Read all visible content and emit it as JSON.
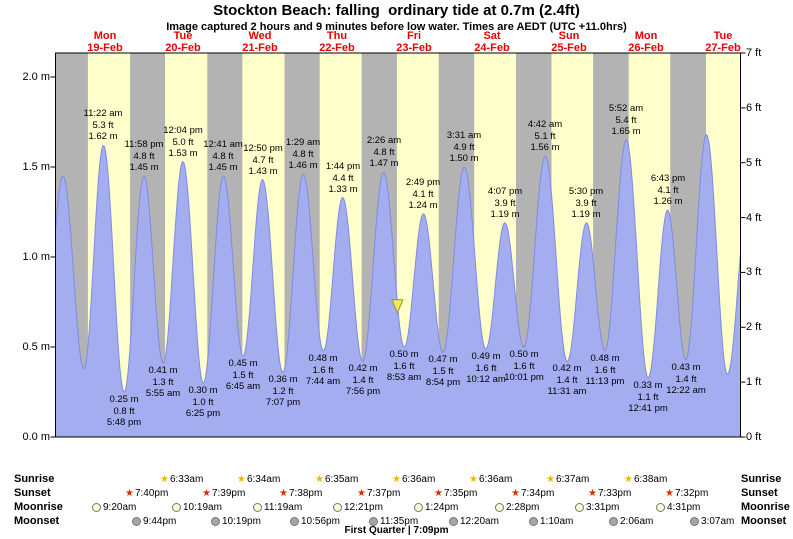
{
  "title": "Stockton Beach: falling  ordinary tide at 0.7m (2.4ft)",
  "subtitle": "Image captured 2 hours and 9 minutes before low water. Times are AEDT (UTC +11.0hrs)",
  "colors": {
    "day_bg": "#ffffcc",
    "night_bg": "#b3b3b3",
    "tide_fill": "#a3adf0",
    "tide_stroke": "#7f8ce0",
    "day_label": "#e80000",
    "frame": "#000000",
    "marker_fill": "#efe95e",
    "marker_stroke": "#97941f"
  },
  "days": [
    {
      "name": "Mon",
      "date": "19-Feb",
      "t_noon": 12
    },
    {
      "name": "Tue",
      "date": "20-Feb",
      "t_noon": 36
    },
    {
      "name": "Wed",
      "date": "21-Feb",
      "t_noon": 60
    },
    {
      "name": "Thu",
      "date": "22-Feb",
      "t_noon": 84
    },
    {
      "name": "Fri",
      "date": "23-Feb",
      "t_noon": 108
    },
    {
      "name": "Sat",
      "date": "24-Feb",
      "t_noon": 132
    },
    {
      "name": "Sun",
      "date": "25-Feb",
      "t_noon": 156
    },
    {
      "name": "Mon",
      "date": "26-Feb",
      "t_noon": 180
    },
    {
      "name": "Tue",
      "date": "27-Feb",
      "t_noon": 204
    }
  ],
  "y_axis_left": {
    "unit": "m",
    "labels": [
      "2.0 m",
      "1.5 m",
      "1.0 m",
      "0.5 m",
      "0.0 m"
    ],
    "values": [
      2.0,
      1.5,
      1.0,
      0.5,
      0.0
    ]
  },
  "y_axis_right": {
    "unit": "ft",
    "labels": [
      "7 ft",
      "6 ft",
      "5 ft",
      "4 ft",
      "3 ft",
      "2 ft",
      "1 ft",
      "0 ft"
    ],
    "values": [
      7,
      6,
      5,
      4,
      3,
      2,
      1,
      0
    ]
  },
  "chart_data": {
    "type": "area",
    "title": "Tide height curve, Stockton Beach, Mon 19-Feb to Tue 27-Feb",
    "time_axis": "hours from Mon 19-Feb 00:00 AEDT",
    "t_range": [
      -3.53,
      209.37
    ],
    "ylim_m": [
      0,
      2.1336
    ],
    "ylim_ft": [
      0,
      7
    ],
    "grid": false,
    "extremes": [
      {
        "t": -7.6,
        "height_m": 0.4,
        "type": "low",
        "labeled": false
      },
      {
        "t": -1.2,
        "height_m": 1.45,
        "type": "high",
        "labeled": false
      },
      {
        "t": 5.3,
        "height_m": 0.38,
        "type": "low",
        "labeled": false
      },
      {
        "t": 11.37,
        "height_m": 1.62,
        "type": "high",
        "labeled": true,
        "time": "11:22 am",
        "ft": "5.3 ft",
        "m": "1.62 m"
      },
      {
        "t": 17.8,
        "height_m": 0.25,
        "type": "low",
        "labeled": true,
        "time": "5:48 pm",
        "ft": "0.8 ft",
        "m": "0.25 m"
      },
      {
        "t": 23.97,
        "height_m": 1.45,
        "type": "high",
        "labeled": true,
        "time": "11:58 pm",
        "ft": "4.8 ft",
        "m": "1.45 m"
      },
      {
        "t": 29.92,
        "height_m": 0.41,
        "type": "low",
        "labeled": true,
        "time": "5:55 am",
        "ft": "1.3 ft",
        "m": "0.41 m"
      },
      {
        "t": 36.07,
        "height_m": 1.53,
        "type": "high",
        "labeled": true,
        "time": "12:04 pm",
        "ft": "5.0 ft",
        "m": "1.53 m"
      },
      {
        "t": 42.42,
        "height_m": 0.3,
        "type": "low",
        "labeled": true,
        "time": "6:25 pm",
        "ft": "1.0 ft",
        "m": "0.30 m"
      },
      {
        "t": 48.68,
        "height_m": 1.45,
        "type": "high",
        "labeled": true,
        "time": "12:41 am",
        "ft": "4.8 ft",
        "m": "1.45 m"
      },
      {
        "t": 54.75,
        "height_m": 0.45,
        "type": "low",
        "labeled": true,
        "time": "6:45 am",
        "ft": "1.5 ft",
        "m": "0.45 m"
      },
      {
        "t": 60.83,
        "height_m": 1.43,
        "type": "high",
        "labeled": true,
        "time": "12:50 pm",
        "ft": "4.7 ft",
        "m": "1.43 m"
      },
      {
        "t": 67.12,
        "height_m": 0.36,
        "type": "low",
        "labeled": true,
        "time": "7:07 pm",
        "ft": "1.2 ft",
        "m": "0.36 m"
      },
      {
        "t": 73.48,
        "height_m": 1.46,
        "type": "high",
        "labeled": true,
        "time": "1:29 am",
        "ft": "4.8 ft",
        "m": "1.46 m"
      },
      {
        "t": 79.73,
        "height_m": 0.48,
        "type": "low",
        "labeled": true,
        "time": "7:44 am",
        "ft": "1.6 ft",
        "m": "0.48 m"
      },
      {
        "t": 85.73,
        "height_m": 1.33,
        "type": "high",
        "labeled": true,
        "time": "1:44 pm",
        "ft": "4.4 ft",
        "m": "1.33 m"
      },
      {
        "t": 91.93,
        "height_m": 0.42,
        "type": "low",
        "labeled": true,
        "time": "7:56 pm",
        "ft": "1.4 ft",
        "m": "0.42 m"
      },
      {
        "t": 98.43,
        "height_m": 1.47,
        "type": "high",
        "labeled": true,
        "time": "2:26 am",
        "ft": "4.8 ft",
        "m": "1.47 m"
      },
      {
        "t": 104.88,
        "height_m": 0.5,
        "type": "low",
        "labeled": true,
        "time": "8:53 am",
        "ft": "1.6 ft",
        "m": "0.50 m"
      },
      {
        "t": 110.82,
        "height_m": 1.24,
        "type": "high",
        "labeled": true,
        "time": "2:49 pm",
        "ft": "4.1 ft",
        "m": "1.24 m"
      },
      {
        "t": 116.9,
        "height_m": 0.47,
        "type": "low",
        "labeled": true,
        "time": "8:54 pm",
        "ft": "1.5 ft",
        "m": "0.47 m"
      },
      {
        "t": 123.52,
        "height_m": 1.5,
        "type": "high",
        "labeled": true,
        "time": "3:31 am",
        "ft": "4.9 ft",
        "m": "1.50 m"
      },
      {
        "t": 130.2,
        "height_m": 0.49,
        "type": "low",
        "labeled": true,
        "time": "10:12 am",
        "ft": "1.6 ft",
        "m": "0.49 m"
      },
      {
        "t": 136.12,
        "height_m": 1.19,
        "type": "high",
        "labeled": true,
        "time": "4:07 pm",
        "ft": "3.9 ft",
        "m": "1.19 m"
      },
      {
        "t": 142.02,
        "height_m": 0.5,
        "type": "low",
        "labeled": true,
        "time": "10:01 pm",
        "ft": "1.6 ft",
        "m": "0.50 m"
      },
      {
        "t": 148.7,
        "height_m": 1.56,
        "type": "high",
        "labeled": true,
        "time": "4:42 am",
        "ft": "5.1 ft",
        "m": "1.56 m"
      },
      {
        "t": 155.52,
        "height_m": 0.42,
        "type": "low",
        "labeled": true,
        "time": "11:31 am",
        "ft": "1.4 ft",
        "m": "0.42 m"
      },
      {
        "t": 161.5,
        "height_m": 1.19,
        "type": "high",
        "labeled": true,
        "time": "5:30 pm",
        "ft": "3.9 ft",
        "m": "1.19 m"
      },
      {
        "t": 167.22,
        "height_m": 0.48,
        "type": "low",
        "labeled": true,
        "time": "11:13 pm",
        "ft": "1.6 ft",
        "m": "0.48 m"
      },
      {
        "t": 173.87,
        "height_m": 1.65,
        "type": "high",
        "labeled": true,
        "time": "5:52 am",
        "ft": "5.4 ft",
        "m": "1.65 m"
      },
      {
        "t": 180.68,
        "height_m": 0.33,
        "type": "low",
        "labeled": true,
        "time": "12:41 pm",
        "ft": "1.1 ft",
        "m": "0.33 m"
      },
      {
        "t": 186.72,
        "height_m": 1.26,
        "type": "high",
        "labeled": true,
        "time": "6:43 pm",
        "ft": "4.1 ft",
        "m": "1.26 m"
      },
      {
        "t": 192.37,
        "height_m": 0.43,
        "type": "low",
        "labeled": true,
        "time": "12:22 am",
        "ft": "1.4 ft",
        "m": "0.43 m"
      },
      {
        "t": 198.8,
        "height_m": 1.68,
        "type": "high",
        "labeled": false
      },
      {
        "t": 205.3,
        "height_m": 0.35,
        "type": "low",
        "labeled": false
      },
      {
        "t": 211.7,
        "height_m": 1.3,
        "type": "high",
        "labeled": false
      }
    ],
    "night_bands": [
      [
        -3.53,
        6.53
      ],
      [
        19.67,
        30.55
      ],
      [
        43.65,
        54.57
      ],
      [
        67.63,
        78.58
      ],
      [
        91.62,
        102.6
      ],
      [
        115.58,
        126.6
      ],
      [
        139.57,
        150.62
      ],
      [
        163.55,
        174.63
      ],
      [
        187.53,
        198.65
      ]
    ],
    "now_marker": {
      "t": 102.73,
      "height_m": 0.74
    }
  },
  "astro": {
    "rows": [
      {
        "id": "sunrise",
        "label": "Sunrise",
        "icon": "sunrise-star-icon",
        "icon_type": "star",
        "icon_color": "#f0b400",
        "entries": [
          {
            "t": 30.55,
            "time": "6:33am"
          },
          {
            "t": 54.57,
            "time": "6:34am"
          },
          {
            "t": 78.58,
            "time": "6:35am"
          },
          {
            "t": 102.6,
            "time": "6:36am"
          },
          {
            "t": 126.6,
            "time": "6:36am"
          },
          {
            "t": 150.62,
            "time": "6:37am"
          },
          {
            "t": 174.63,
            "time": "6:38am"
          }
        ]
      },
      {
        "id": "sunset",
        "label": "Sunset",
        "icon": "sunset-star-icon",
        "icon_type": "star",
        "icon_color": "#d43000",
        "entries": [
          {
            "t": 19.67,
            "time": "7:40pm"
          },
          {
            "t": 43.65,
            "time": "7:39pm"
          },
          {
            "t": 67.63,
            "time": "7:38pm"
          },
          {
            "t": 91.62,
            "time": "7:37pm"
          },
          {
            "t": 115.58,
            "time": "7:35pm"
          },
          {
            "t": 139.57,
            "time": "7:34pm"
          },
          {
            "t": 163.55,
            "time": "7:33pm"
          },
          {
            "t": 187.53,
            "time": "7:32pm"
          }
        ]
      },
      {
        "id": "moonrise",
        "label": "Moonrise",
        "icon": "moonrise-circle-icon",
        "icon_type": "circle",
        "icon_color": "#ffffd6",
        "entries": [
          {
            "t": 9.33,
            "time": "9:20am"
          },
          {
            "t": 34.32,
            "time": "10:19am"
          },
          {
            "t": 59.32,
            "time": "11:19am"
          },
          {
            "t": 84.35,
            "time": "12:21pm"
          },
          {
            "t": 109.4,
            "time": "1:24pm"
          },
          {
            "t": 134.47,
            "time": "2:28pm"
          },
          {
            "t": 159.52,
            "time": "3:31pm"
          },
          {
            "t": 184.52,
            "time": "4:31pm"
          }
        ]
      },
      {
        "id": "moonset",
        "label": "Moonset",
        "icon": "moonset-circle-icon",
        "icon_type": "circle",
        "icon_color": "#a6a6a6",
        "entries": [
          {
            "t": 21.73,
            "time": "9:44pm"
          },
          {
            "t": 46.32,
            "time": "10:19pm"
          },
          {
            "t": 70.93,
            "time": "10:56pm"
          },
          {
            "t": 95.58,
            "time": "11:35pm"
          },
          {
            "t": 120.33,
            "time": "12:20am"
          },
          {
            "t": 145.17,
            "time": "1:10am"
          },
          {
            "t": 170.1,
            "time": "2:06am"
          },
          {
            "t": 195.12,
            "time": "3:07am"
          }
        ]
      }
    ],
    "footer": "First Quarter | 7:09pm"
  }
}
